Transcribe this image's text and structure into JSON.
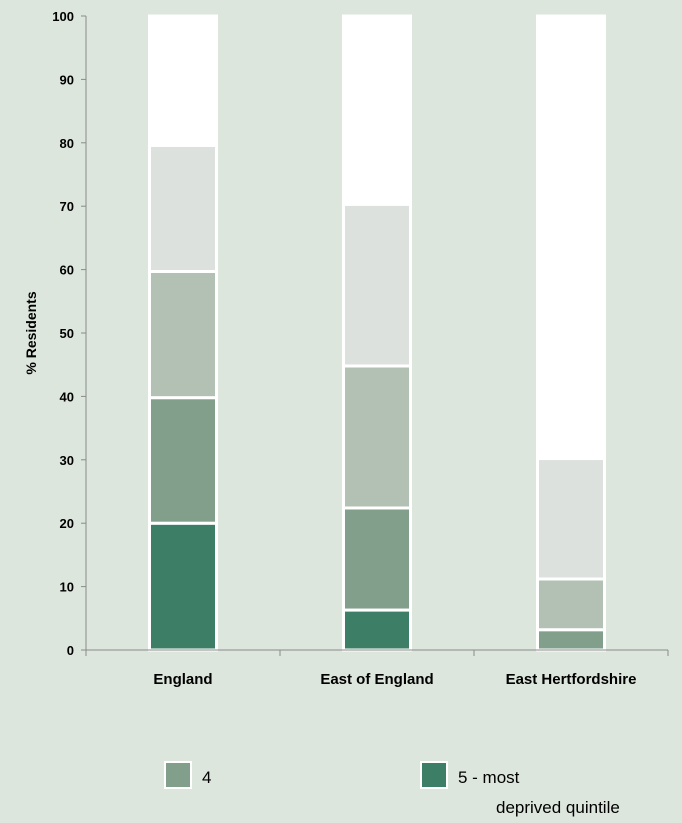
{
  "chart_data": {
    "type": "bar",
    "stacked": true,
    "title": "",
    "xlabel": "",
    "ylabel": "% Residents",
    "ylim": [
      0,
      100
    ],
    "yticks": [
      0,
      10,
      20,
      30,
      40,
      50,
      60,
      70,
      80,
      90,
      100
    ],
    "categories": [
      "England",
      "East of England",
      "East Hertfordshire"
    ],
    "series": [
      {
        "name": "5 - most deprived quintile",
        "color": "#3d7f66",
        "values": [
          20,
          6.3,
          0
        ]
      },
      {
        "name": "4",
        "color": "#829f8b",
        "values": [
          19.8,
          16.1,
          3.2
        ]
      },
      {
        "series_level": "3",
        "color": "#b2c1b4",
        "values": [
          19.9,
          22.4,
          8
        ]
      },
      {
        "series_level": "2",
        "color": "#dde1dd",
        "values": [
          19.9,
          25.5,
          19
        ]
      },
      {
        "series_level": "1",
        "color": "#ffffff",
        "values": [
          20.4,
          29.7,
          69.8
        ]
      }
    ],
    "legend": {
      "placement": "bottom",
      "entries": [
        {
          "label": "4",
          "color": "#829f8b"
        },
        {
          "label_line1": "5 - most",
          "label_line2": "deprived quintile",
          "color": "#3d7f66"
        }
      ]
    },
    "grid": false
  }
}
